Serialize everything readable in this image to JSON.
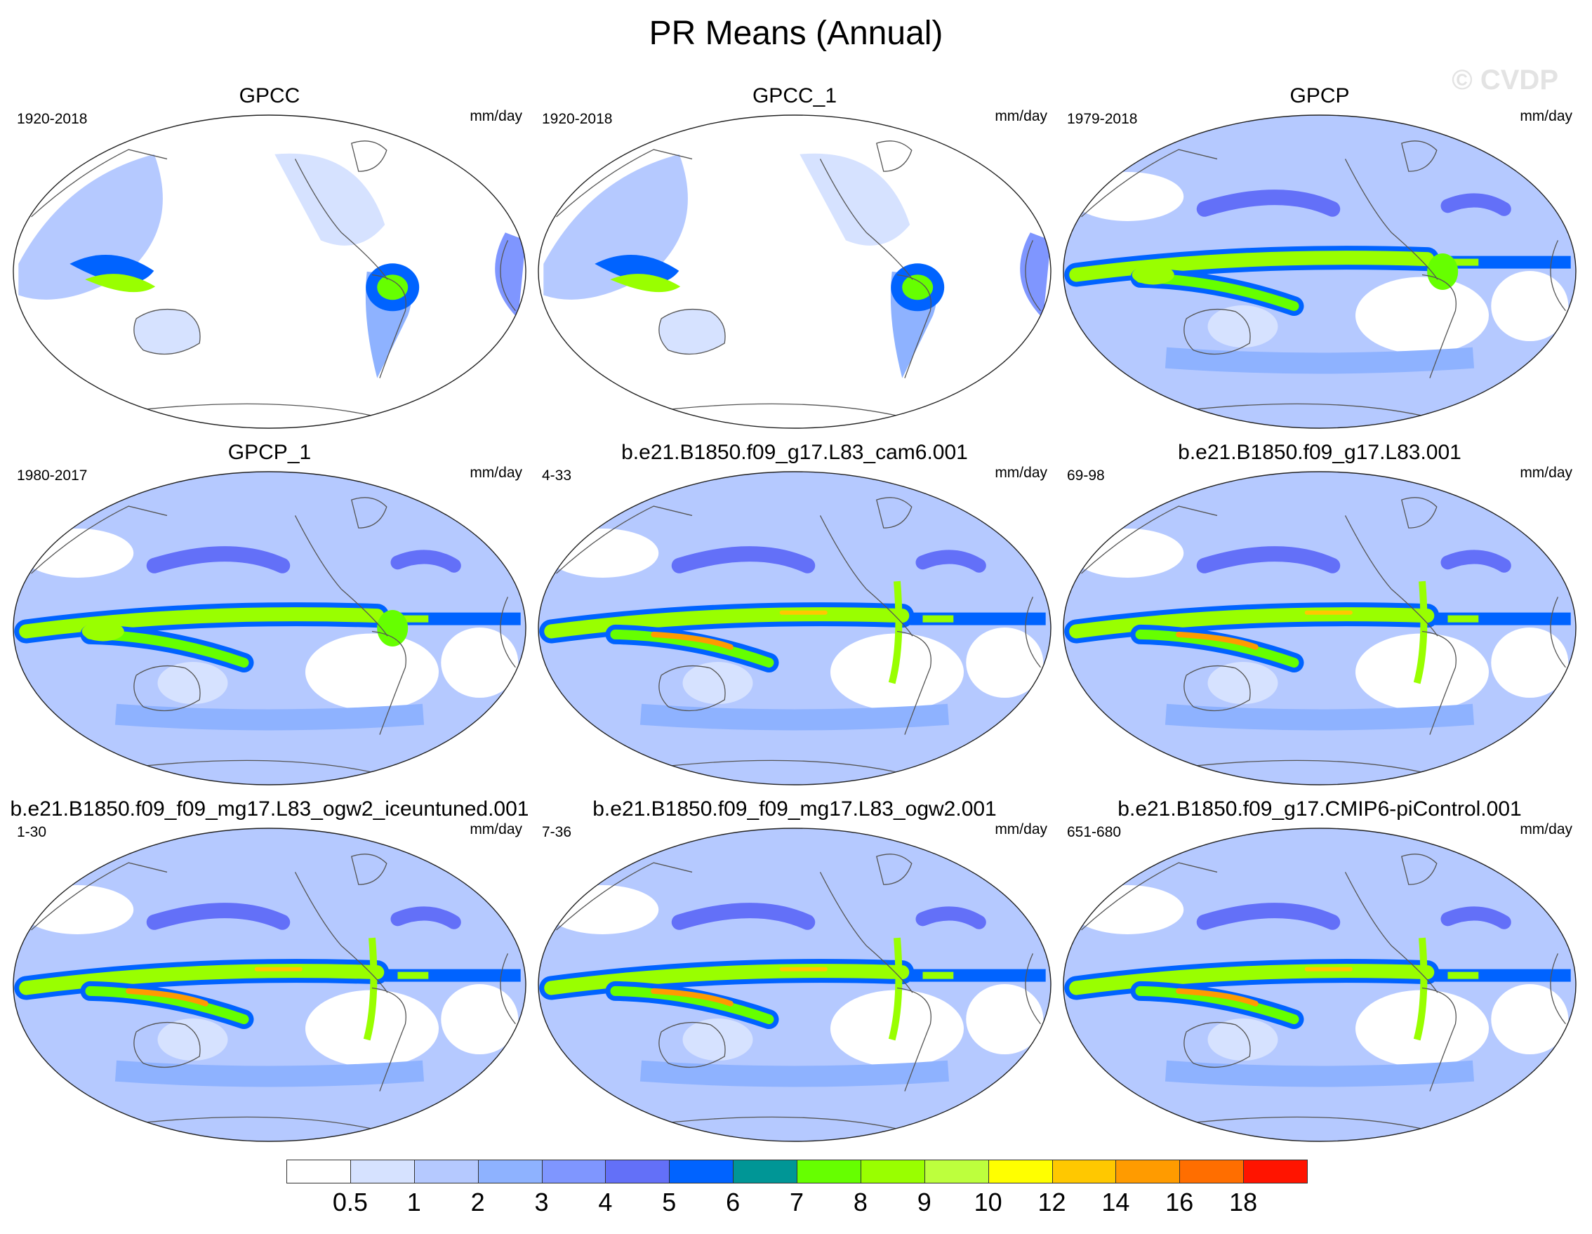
{
  "title": "PR Means (Annual)",
  "watermark": "© CVDP",
  "units": "mm/day",
  "panels": [
    {
      "title": "GPCC",
      "years": "1920-2018",
      "style": "land"
    },
    {
      "title": "GPCC_1",
      "years": "1920-2018",
      "style": "land"
    },
    {
      "title": "GPCP",
      "years": "1979-2018",
      "style": "obs"
    },
    {
      "title": "GPCP_1",
      "years": "1980-2017",
      "style": "obs"
    },
    {
      "title": "b.e21.B1850.f09_g17.L83_cam6.001",
      "years": "4-33",
      "style": "model"
    },
    {
      "title": "b.e21.B1850.f09_g17.L83.001",
      "years": "69-98",
      "style": "model"
    },
    {
      "title": "b.e21.B1850.f09_f09_mg17.L83_ogw2_iceuntuned.001",
      "years": "1-30",
      "style": "model"
    },
    {
      "title": "b.e21.B1850.f09_f09_mg17.L83_ogw2.001",
      "years": "7-36",
      "style": "model"
    },
    {
      "title": "b.e21.B1850.f09_g17.CMIP6-piControl.001",
      "years": "651-680",
      "style": "model"
    }
  ],
  "colorbar": {
    "labels": [
      "0.5",
      "1",
      "2",
      "3",
      "4",
      "5",
      "6",
      "7",
      "8",
      "9",
      "10",
      "12",
      "14",
      "16",
      "18"
    ],
    "colors": [
      "#ffffff",
      "#d6e2ff",
      "#b5c9ff",
      "#8eb2ff",
      "#7f96ff",
      "#6370f8",
      "#0063ff",
      "#009696",
      "#66ff00",
      "#99ff00",
      "#bdff3d",
      "#ffff00",
      "#ffc800",
      "#ff9b00",
      "#ff6e00",
      "#ff1400"
    ]
  }
}
